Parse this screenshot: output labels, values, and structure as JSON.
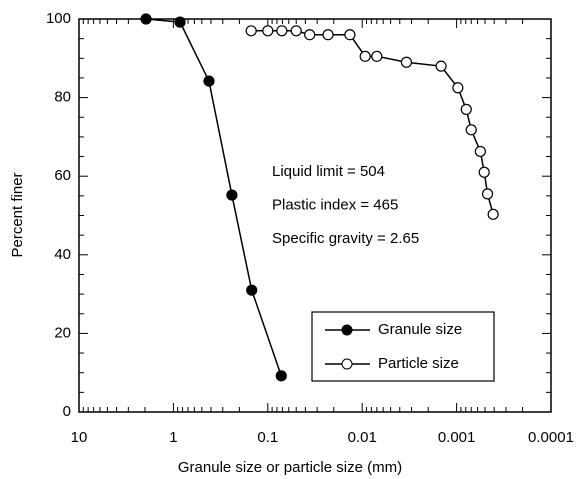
{
  "chart_data": {
    "type": "line",
    "x_label": "Granule size or particle size (mm)",
    "y_label": "Percent finer",
    "log_x": true,
    "x_reversed": true,
    "xlim": [
      10,
      0.0001
    ],
    "xticks": [
      10,
      1,
      0.1,
      0.01,
      0.001,
      0.0001
    ],
    "ylim": [
      0,
      100
    ],
    "yticks": [
      0,
      20,
      40,
      60,
      80,
      100
    ],
    "legend_position": "lower right",
    "annotations": [
      "Liquid limit = 504",
      "Plastic index = 465",
      "Specific gravity = 2.65"
    ],
    "series": [
      {
        "name": "Granule size",
        "color": "#000000",
        "marker": "filled",
        "x": [
          1.95,
          0.85,
          0.42,
          0.24,
          0.148,
          0.072
        ],
        "values": [
          100,
          99.2,
          84.2,
          55.2,
          31,
          9.2
        ]
      },
      {
        "name": "Particle size",
        "color": "#000000",
        "marker": "open",
        "x": [
          0.15,
          0.1,
          0.071,
          0.05,
          0.036,
          0.023,
          0.0135,
          0.0093,
          0.007,
          0.0034,
          0.00146,
          0.00097,
          0.00079,
          0.0007,
          0.00056,
          0.00051,
          0.00047,
          0.00041
        ],
        "values": [
          97,
          97,
          97,
          97,
          96,
          96,
          96,
          90.5,
          90.5,
          89,
          88,
          82.5,
          77,
          71.8,
          66.3,
          61,
          55.5,
          50.3
        ]
      }
    ]
  }
}
